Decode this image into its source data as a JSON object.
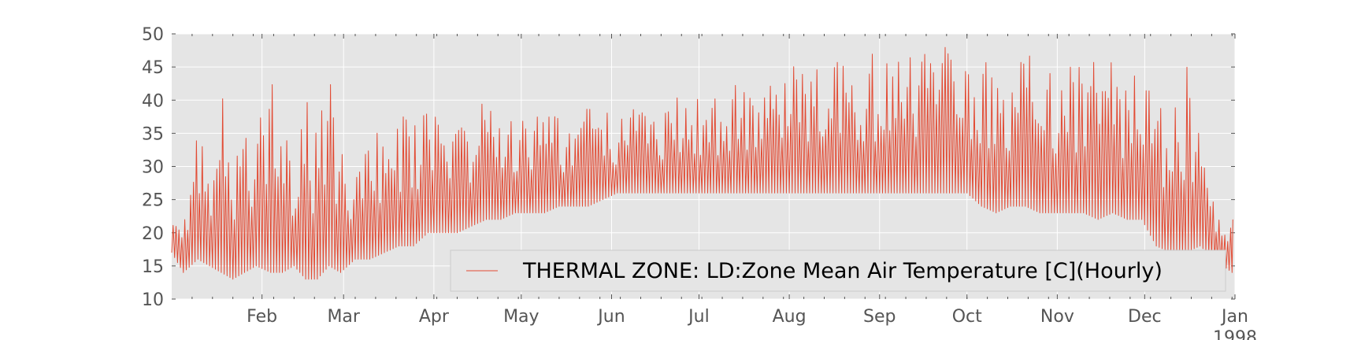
{
  "chart_data": {
    "type": "line",
    "title": "",
    "xlabel": "",
    "ylabel": "",
    "ylim": [
      10,
      50
    ],
    "xlim": [
      "1997-01-01",
      "1998-01-01"
    ],
    "grid": true,
    "legend_position": "lower-right",
    "background_color": "#E5E5E5",
    "grid_color": "#FFFFFF",
    "y_ticks": [
      "10",
      "15",
      "20",
      "25",
      "30",
      "35",
      "40",
      "45",
      "50"
    ],
    "x_ticks": [
      {
        "label": "Feb",
        "date": "1997-02-01"
      },
      {
        "label": "Mar",
        "date": "1997-03-01"
      },
      {
        "label": "Apr",
        "date": "1997-04-01"
      },
      {
        "label": "May",
        "date": "1997-05-01"
      },
      {
        "label": "Jun",
        "date": "1997-06-01"
      },
      {
        "label": "Jul",
        "date": "1997-07-01"
      },
      {
        "label": "Aug",
        "date": "1997-08-01"
      },
      {
        "label": "Sep",
        "date": "1997-09-01"
      },
      {
        "label": "Oct",
        "date": "1997-10-01"
      },
      {
        "label": "Nov",
        "date": "1997-11-01"
      },
      {
        "label": "Dec",
        "date": "1997-12-01"
      },
      {
        "label": "Jan",
        "date": "1998-01-01"
      }
    ],
    "x_year_label": "1998",
    "series": [
      {
        "name": "THERMAL ZONE: LD:Zone Mean Air Temperature [C](Hourly)",
        "color": "#E24A33",
        "resolution": "daily min / max envelope of hourly values",
        "dates": [
          "1997-01-01",
          "1997-01-05",
          "1997-01-10",
          "1997-01-14",
          "1997-01-18",
          "1997-01-22",
          "1997-01-26",
          "1997-01-30",
          "1997-02-04",
          "1997-02-08",
          "1997-02-12",
          "1997-02-16",
          "1997-02-20",
          "1997-02-24",
          "1997-02-28",
          "1997-03-05",
          "1997-03-10",
          "1997-03-15",
          "1997-03-20",
          "1997-03-25",
          "1997-03-30",
          "1997-04-04",
          "1997-04-09",
          "1997-04-14",
          "1997-04-19",
          "1997-04-24",
          "1997-04-29",
          "1997-05-04",
          "1997-05-09",
          "1997-05-14",
          "1997-05-19",
          "1997-05-24",
          "1997-05-29",
          "1997-06-03",
          "1997-06-08",
          "1997-06-13",
          "1997-06-18",
          "1997-06-23",
          "1997-06-28",
          "1997-07-03",
          "1997-07-08",
          "1997-07-13",
          "1997-07-18",
          "1997-07-23",
          "1997-07-28",
          "1997-08-02",
          "1997-08-07",
          "1997-08-12",
          "1997-08-17",
          "1997-08-22",
          "1997-08-27",
          "1997-09-01",
          "1997-09-06",
          "1997-09-11",
          "1997-09-16",
          "1997-09-21",
          "1997-09-26",
          "1997-10-01",
          "1997-10-06",
          "1997-10-11",
          "1997-10-16",
          "1997-10-21",
          "1997-10-26",
          "1997-10-31",
          "1997-11-05",
          "1997-11-10",
          "1997-11-15",
          "1997-11-20",
          "1997-11-25",
          "1997-11-30",
          "1997-12-05",
          "1997-12-10",
          "1997-12-15",
          "1997-12-20",
          "1997-12-25",
          "1997-12-31"
        ],
        "min": [
          17,
          14,
          16,
          15,
          14,
          13,
          14,
          15,
          14,
          14,
          15,
          13,
          13,
          15,
          14,
          16,
          16,
          17,
          18,
          18,
          20,
          20,
          20,
          21,
          22,
          22,
          23,
          23,
          23,
          24,
          24,
          24,
          25,
          26,
          26,
          26,
          26,
          26,
          26,
          26,
          26,
          26,
          26,
          26,
          26,
          26,
          26,
          26,
          26,
          26,
          26,
          26,
          26,
          26,
          26,
          26,
          26,
          26,
          24,
          23,
          24,
          24,
          23,
          23,
          23,
          23,
          22,
          23,
          22,
          22,
          18,
          17,
          17,
          18,
          16,
          14
        ],
        "max": [
          25,
          22,
          43,
          34,
          41,
          30,
          39,
          37,
          44,
          36,
          33,
          42,
          37,
          43,
          36,
          30,
          36,
          34,
          40,
          38,
          40,
          35,
          40,
          39,
          40,
          41,
          37,
          38,
          39,
          37,
          38,
          39,
          40,
          37,
          41,
          40,
          40,
          41,
          42,
          40,
          41,
          43,
          44,
          45,
          44,
          46,
          46,
          45,
          46,
          46,
          47,
          47,
          46,
          48,
          50,
          48,
          49,
          45,
          46,
          48,
          47,
          49,
          47,
          47,
          49,
          48,
          45,
          47,
          46,
          46,
          40,
          40,
          46,
          38,
          26,
          22
        ]
      }
    ]
  }
}
